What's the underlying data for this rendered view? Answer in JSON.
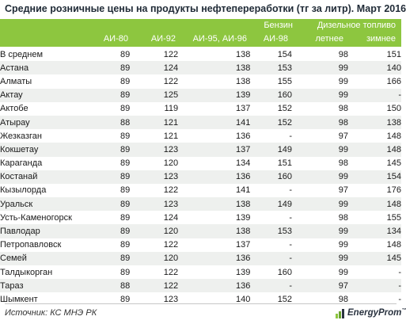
{
  "title": "Средние розничные цены на продукты нефтепереработки (тг за литр). Март 2016",
  "header": {
    "benzin": "Бензин",
    "diesel": "Дизельное топливо",
    "ai80": "АИ-80",
    "ai92": "АИ-92",
    "ai95": "АИ-95, АИ-96",
    "ai98": "АИ-98",
    "summer": "летнее",
    "winter": "зимнее"
  },
  "rows": [
    {
      "name": "В среднем",
      "ai80": "89",
      "ai92": "122",
      "ai95": "138",
      "ai98": "154",
      "summer": "98",
      "winter": "151"
    },
    {
      "name": "Астана",
      "ai80": "89",
      "ai92": "124",
      "ai95": "138",
      "ai98": "153",
      "summer": "99",
      "winter": "140"
    },
    {
      "name": "Алматы",
      "ai80": "89",
      "ai92": "122",
      "ai95": "138",
      "ai98": "155",
      "summer": "99",
      "winter": "166"
    },
    {
      "name": "Актау",
      "ai80": "89",
      "ai92": "125",
      "ai95": "139",
      "ai98": "160",
      "summer": "99",
      "winter": "-"
    },
    {
      "name": "Актобе",
      "ai80": "89",
      "ai92": "119",
      "ai95": "137",
      "ai98": "152",
      "summer": "98",
      "winter": "150"
    },
    {
      "name": "Атырау",
      "ai80": "88",
      "ai92": "121",
      "ai95": "141",
      "ai98": "152",
      "summer": "98",
      "winter": "138"
    },
    {
      "name": "Жезказган",
      "ai80": "89",
      "ai92": "121",
      "ai95": "136",
      "ai98": "-",
      "summer": "97",
      "winter": "148"
    },
    {
      "name": "Кокшетау",
      "ai80": "89",
      "ai92": "123",
      "ai95": "137",
      "ai98": "149",
      "summer": "99",
      "winter": "148"
    },
    {
      "name": "Караганда",
      "ai80": "89",
      "ai92": "120",
      "ai95": "134",
      "ai98": "151",
      "summer": "98",
      "winter": "145"
    },
    {
      "name": "Костанай",
      "ai80": "89",
      "ai92": "123",
      "ai95": "136",
      "ai98": "160",
      "summer": "99",
      "winter": "154"
    },
    {
      "name": "Кызылорда",
      "ai80": "89",
      "ai92": "122",
      "ai95": "141",
      "ai98": "-",
      "summer": "97",
      "winter": "176"
    },
    {
      "name": "Уральск",
      "ai80": "89",
      "ai92": "123",
      "ai95": "138",
      "ai98": "149",
      "summer": "99",
      "winter": "148"
    },
    {
      "name": "Усть-Каменогорск",
      "ai80": "89",
      "ai92": "124",
      "ai95": "139",
      "ai98": "-",
      "summer": "98",
      "winter": "155"
    },
    {
      "name": "Павлодар",
      "ai80": "89",
      "ai92": "120",
      "ai95": "138",
      "ai98": "153",
      "summer": "99",
      "winter": "134"
    },
    {
      "name": "Петропавловск",
      "ai80": "89",
      "ai92": "122",
      "ai95": "137",
      "ai98": "-",
      "summer": "99",
      "winter": "148"
    },
    {
      "name": "Семей",
      "ai80": "89",
      "ai92": "120",
      "ai95": "136",
      "ai98": "-",
      "summer": "99",
      "winter": "145"
    },
    {
      "name": "Талдыкорган",
      "ai80": "89",
      "ai92": "122",
      "ai95": "139",
      "ai98": "160",
      "summer": "99",
      "winter": "-"
    },
    {
      "name": "Тараз",
      "ai80": "88",
      "ai92": "122",
      "ai95": "136",
      "ai98": "-",
      "summer": "97",
      "winter": "-"
    },
    {
      "name": "Шымкент",
      "ai80": "89",
      "ai92": "123",
      "ai95": "140",
      "ai98": "152",
      "summer": "98",
      "winter": "-"
    }
  ],
  "footer": {
    "source": "Источник: КС МНЭ РК",
    "logo_text": "EnergyProm",
    "logo_tm": "™"
  },
  "colors": {
    "header_bg": "#8dc63f",
    "header_text": "#ffffff",
    "stripe": "#eef0ee"
  }
}
